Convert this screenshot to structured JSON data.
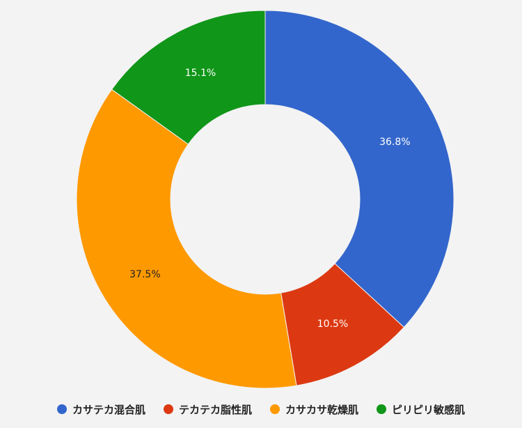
{
  "chart_data": {
    "type": "pie",
    "donut": true,
    "categories": [
      "カサテカ混合肌",
      "テカテカ脂性肌",
      "カサカサ乾燥肌",
      "ピリピリ敏感肌"
    ],
    "values": [
      36.8,
      10.5,
      37.5,
      15.1
    ],
    "value_labels": [
      "36.8%",
      "10.5%",
      "37.5%",
      "15.1%"
    ],
    "colors": [
      "#3366cc",
      "#dc3912",
      "#ff9900",
      "#109618"
    ],
    "label_colors": [
      "#ffffff",
      "#ffffff",
      "#222222",
      "#ffffff"
    ],
    "legend_placement": "bottom",
    "start": "top",
    "direction": "clockwise"
  }
}
